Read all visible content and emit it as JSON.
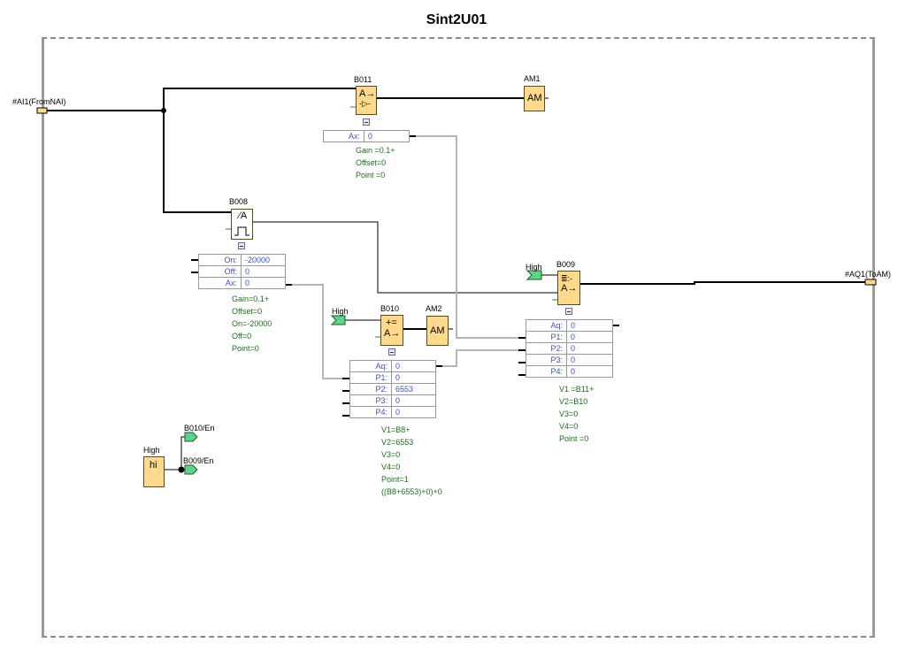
{
  "title": "Sint2U01",
  "colors": {
    "block": "#FFDA8C",
    "param_text": "#3a50c0",
    "info_text": "#1d6e1d",
    "flag": "#5fd38a",
    "wire": "#000000",
    "param_wire": "#b5b5b5"
  },
  "io": {
    "input": "#AI1(FromNAI)",
    "output": "#AQ1(ToAM)"
  },
  "blocks": {
    "b011": {
      "name": "B011",
      "icon": "analog-amplifier-icon",
      "sym1": "A→",
      "sym2": "-▷-",
      "params": [
        {
          "k": "Ax:",
          "v": "0"
        }
      ],
      "info": [
        "Gain  =0.1+",
        "Offset=0",
        "Point =0"
      ]
    },
    "am1": {
      "name": "AM1",
      "sym": "AM"
    },
    "b008": {
      "name": "B008",
      "icon": "analog-threshold-trigger-icon",
      "sym1": "⁄A",
      "params": [
        {
          "k": "On:",
          "v": "-20000"
        },
        {
          "k": "Off:",
          "v": "0"
        },
        {
          "k": "Ax:",
          "v": "0"
        }
      ],
      "info": [
        "Gain=0.1+",
        "Offset=0",
        "On=-20000",
        "Off=0",
        "Point=0"
      ]
    },
    "b010": {
      "name": "B010",
      "icon": "analog-math-icon",
      "sym1": "+=",
      "sym2": "A→",
      "flag": "High",
      "params": [
        {
          "k": "Aq:",
          "v": "0"
        },
        {
          "k": "P1:",
          "v": "0"
        },
        {
          "k": "P2:",
          "v": "6553"
        },
        {
          "k": "P3:",
          "v": "0"
        },
        {
          "k": "P4:",
          "v": "0"
        }
      ],
      "info": [
        "V1=B8+",
        "V2=6553",
        "V3=0",
        "V4=0",
        "Point=1",
        "((B8+6553)+0)+0"
      ]
    },
    "am2": {
      "name": "AM2",
      "sym": "AM"
    },
    "b009": {
      "name": "B009",
      "icon": "analog-multiplexer-icon",
      "sym1": "≣:-",
      "sym2": "A→",
      "flag": "High",
      "params": [
        {
          "k": "Aq:",
          "v": "0"
        },
        {
          "k": "P1:",
          "v": "0"
        },
        {
          "k": "P2:",
          "v": "0"
        },
        {
          "k": "P3:",
          "v": "0"
        },
        {
          "k": "P4:",
          "v": "0"
        }
      ],
      "info": [
        "V1  =B11+",
        "V2=B10",
        "V3=0",
        "V4=0",
        "Point =0"
      ]
    },
    "hi": {
      "name": "High",
      "sym": "hi",
      "out1": "B010/En",
      "out2": "B009/En"
    }
  }
}
